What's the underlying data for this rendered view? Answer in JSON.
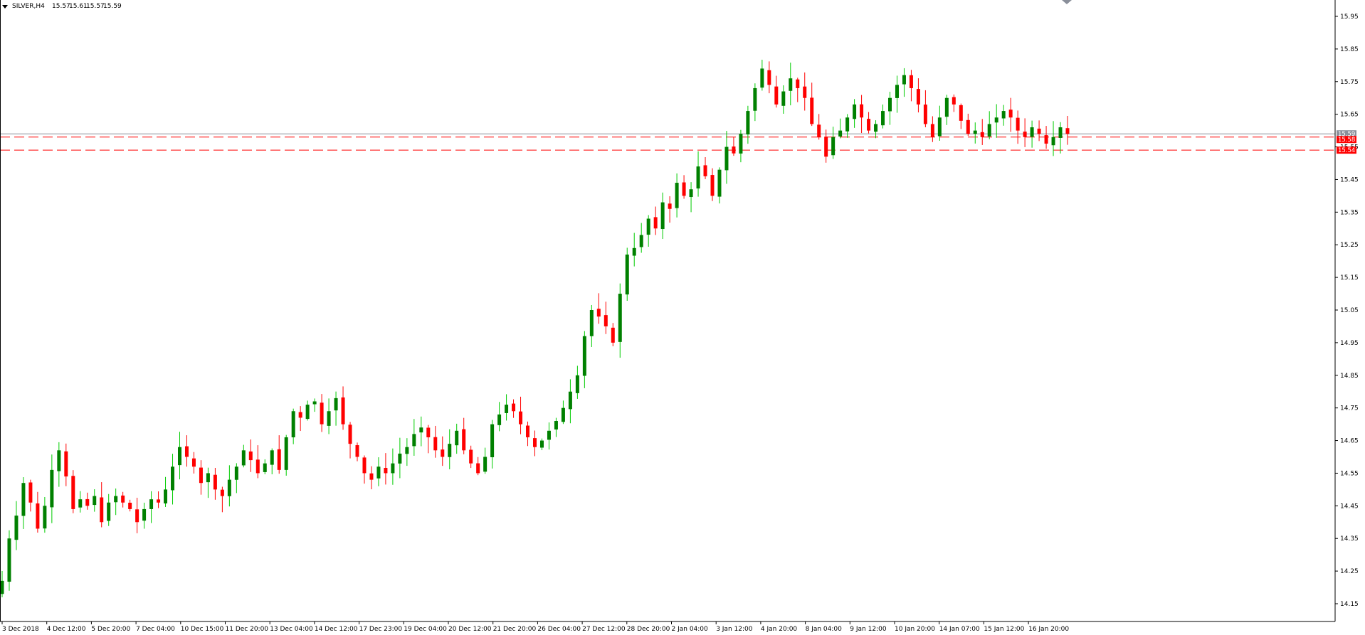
{
  "chart_info": {
    "symbol": "SILVER,H4",
    "open": "15.57",
    "high": "15.61",
    "low": "15.57",
    "close": "15.59"
  },
  "chart_data": {
    "type": "candlestick",
    "ylim": [
      14.1,
      16.0
    ],
    "y_ticks": [
      "15.95",
      "15.85",
      "15.75",
      "15.65",
      "15.55",
      "15.45",
      "15.35",
      "15.25",
      "15.15",
      "15.05",
      "14.95",
      "14.85",
      "14.75",
      "14.65",
      "14.55",
      "14.45",
      "14.35",
      "14.25",
      "14.15"
    ],
    "x_labels": [
      "3 Dec 2018",
      "4 Dec 12:00",
      "5 Dec 20:00",
      "7 Dec 04:00",
      "10 Dec 15:00",
      "11 Dec 20:00",
      "13 Dec 04:00",
      "14 Dec 12:00",
      "17 Dec 23:00",
      "19 Dec 04:00",
      "20 Dec 12:00",
      "21 Dec 20:00",
      "26 Dec 04:00",
      "27 Dec 12:00",
      "28 Dec 20:00",
      "2 Jan 04:00",
      "3 Jan 12:00",
      "4 Jan 20:00",
      "8 Jan 04:00",
      "9 Jan 12:00",
      "10 Jan 20:00",
      "14 Jan 07:00",
      "15 Jan 12:00",
      "16 Jan 20:00"
    ],
    "closes": [
      14.22,
      14.35,
      14.42,
      14.52,
      14.46,
      14.38,
      14.45,
      14.56,
      14.62,
      14.54,
      14.44,
      14.47,
      14.45,
      14.48,
      14.4,
      14.46,
      14.48,
      14.46,
      14.44,
      14.4,
      14.44,
      14.47,
      14.46,
      14.5,
      14.57,
      14.63,
      14.6,
      14.57,
      14.52,
      14.55,
      14.5,
      14.48,
      14.53,
      14.57,
      14.62,
      14.59,
      14.55,
      14.58,
      14.62,
      14.56,
      14.66,
      14.74,
      14.72,
      14.76,
      14.77,
      14.7,
      14.74,
      14.78,
      14.7,
      14.64,
      14.6,
      14.55,
      14.53,
      14.57,
      14.55,
      14.58,
      14.61,
      14.63,
      14.67,
      14.69,
      14.66,
      14.62,
      14.6,
      14.64,
      14.68,
      14.62,
      14.58,
      14.55,
      14.6,
      14.7,
      14.73,
      14.76,
      14.74,
      14.7,
      14.66,
      14.63,
      14.65,
      14.68,
      14.71,
      14.75,
      14.8,
      14.85,
      14.97,
      15.05,
      15.03,
      15.0,
      14.95,
      15.1,
      15.22,
      15.24,
      15.28,
      15.33,
      15.3,
      15.38,
      15.36,
      15.44,
      15.4,
      15.42,
      15.49,
      15.46,
      15.4,
      15.48,
      15.55,
      15.53,
      15.59,
      15.66,
      15.73,
      15.79,
      15.74,
      15.68,
      15.72,
      15.76,
      15.73,
      15.7,
      15.62,
      15.58,
      15.52,
      15.58,
      15.6,
      15.64,
      15.68,
      15.64,
      15.6,
      15.62,
      15.66,
      15.7,
      15.74,
      15.77,
      15.73,
      15.68,
      15.62,
      15.58,
      15.64,
      15.7,
      15.68,
      15.63,
      15.59,
      15.6,
      15.58,
      15.62,
      15.64,
      15.66,
      15.64,
      15.6,
      15.58,
      15.61,
      15.59,
      15.56,
      15.58,
      15.61,
      15.59
    ]
  },
  "levels": [
    {
      "value": 15.59,
      "label": "15.59",
      "color": "#8a8f9a",
      "style": "solid"
    },
    {
      "value": 15.58,
      "label": "15.58",
      "color": "#ff0000",
      "style": "dashed"
    },
    {
      "value": 15.54,
      "label": "15.54",
      "color": "#ff0000",
      "style": "dashed"
    }
  ],
  "colors": {
    "bull_body": "#008000",
    "bull_wick": "#00cc00",
    "bear_body": "#ff0000",
    "axis": "#000000",
    "tag_current": "#8a8f9a"
  }
}
